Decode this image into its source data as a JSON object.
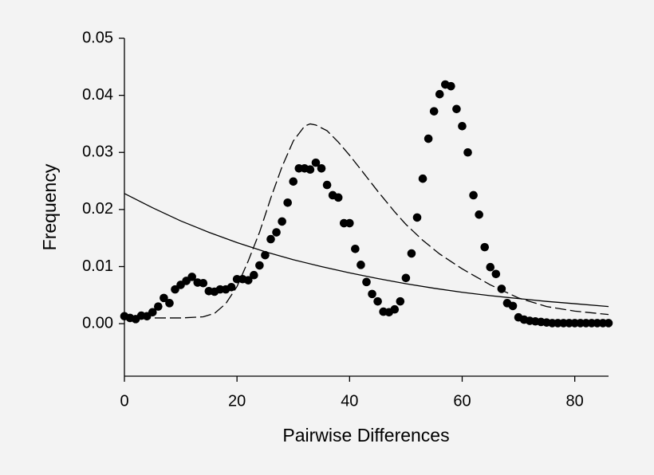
{
  "chart_data": {
    "type": "scatter",
    "xlabel": "Pairwise Differences",
    "ylabel": "Frequency",
    "xlim": [
      0,
      86
    ],
    "ylim": [
      -0.0092,
      0.05
    ],
    "xticks": [
      0,
      20,
      40,
      60,
      80
    ],
    "yticks": [
      {
        "value": 0,
        "label": "0.00"
      },
      0.01,
      0.02,
      0.03,
      0.04,
      0.05
    ],
    "series": [
      {
        "mode": "markers",
        "color": "#000000",
        "x": [
          0,
          1,
          2,
          3,
          4,
          5,
          6,
          7,
          8,
          9,
          10,
          11,
          12,
          13,
          14,
          15,
          16,
          17,
          18,
          19,
          20,
          21,
          22,
          23,
          24,
          25,
          26,
          27,
          28,
          29,
          30,
          31,
          32,
          33,
          34,
          35,
          36,
          37,
          38,
          39,
          40,
          41,
          42,
          43,
          44,
          45,
          46,
          47,
          48,
          49,
          50,
          51,
          52,
          53,
          54,
          55,
          56,
          57,
          58,
          59,
          60,
          61,
          62,
          63,
          64,
          65,
          66,
          67,
          68,
          69,
          70,
          71,
          72,
          73,
          74,
          75,
          76,
          77,
          78,
          79,
          80,
          81,
          82,
          83,
          84,
          85,
          86
        ],
        "values": [
          0.0013,
          0.001,
          0.0008,
          0.0014,
          0.0013,
          0.002,
          0.003,
          0.0045,
          0.0036,
          0.006,
          0.0068,
          0.0075,
          0.0082,
          0.0072,
          0.0071,
          0.0057,
          0.0056,
          0.006,
          0.006,
          0.0064,
          0.0078,
          0.0078,
          0.0076,
          0.0085,
          0.0102,
          0.012,
          0.0148,
          0.016,
          0.0179,
          0.0212,
          0.0249,
          0.0272,
          0.0272,
          0.027,
          0.0282,
          0.0272,
          0.0243,
          0.0225,
          0.0221,
          0.0176,
          0.0176,
          0.0131,
          0.0103,
          0.0073,
          0.0052,
          0.0039,
          0.0021,
          0.002,
          0.0025,
          0.0039,
          0.008,
          0.0123,
          0.0186,
          0.0254,
          0.0324,
          0.0372,
          0.0402,
          0.0419,
          0.0416,
          0.0376,
          0.0346,
          0.03,
          0.0225,
          0.0191,
          0.0134,
          0.0099,
          0.0087,
          0.0061,
          0.0036,
          0.0031,
          0.0011,
          0.0007,
          0.0005,
          0.0004,
          0.0003,
          0.0002,
          0.0001,
          0.0001,
          0.0001,
          0.0001,
          0.0001,
          0.0001,
          0.0001,
          0.0001,
          0.0001,
          0.0001,
          0.0001
        ]
      },
      {
        "mode": "lines",
        "dash": true,
        "color": "#000000",
        "x": [
          0,
          5,
          10,
          14,
          16,
          18,
          20,
          22,
          24,
          26,
          28,
          30,
          32,
          33,
          34,
          36,
          38,
          40,
          42,
          45,
          48,
          50,
          53,
          56,
          60,
          65,
          70,
          75,
          80,
          86
        ],
        "values": [
          0.001,
          0.001,
          0.001,
          0.0012,
          0.0018,
          0.0035,
          0.0065,
          0.011,
          0.016,
          0.022,
          0.0275,
          0.032,
          0.0346,
          0.035,
          0.0348,
          0.0338,
          0.0318,
          0.0295,
          0.027,
          0.0232,
          0.0196,
          0.0174,
          0.0146,
          0.0122,
          0.0096,
          0.0068,
          0.0045,
          0.003,
          0.0022,
          0.0016
        ]
      },
      {
        "mode": "lines",
        "dash": false,
        "color": "#000000",
        "x": [
          0,
          5,
          10,
          15,
          20,
          25,
          30,
          35,
          40,
          45,
          50,
          55,
          60,
          65,
          70,
          75,
          80,
          86
        ],
        "values": [
          0.0228,
          0.0203,
          0.018,
          0.016,
          0.0142,
          0.0126,
          0.0112,
          0.01,
          0.0089,
          0.0079,
          0.007,
          0.0062,
          0.0055,
          0.0049,
          0.0044,
          0.0039,
          0.0035,
          0.003
        ]
      }
    ]
  }
}
